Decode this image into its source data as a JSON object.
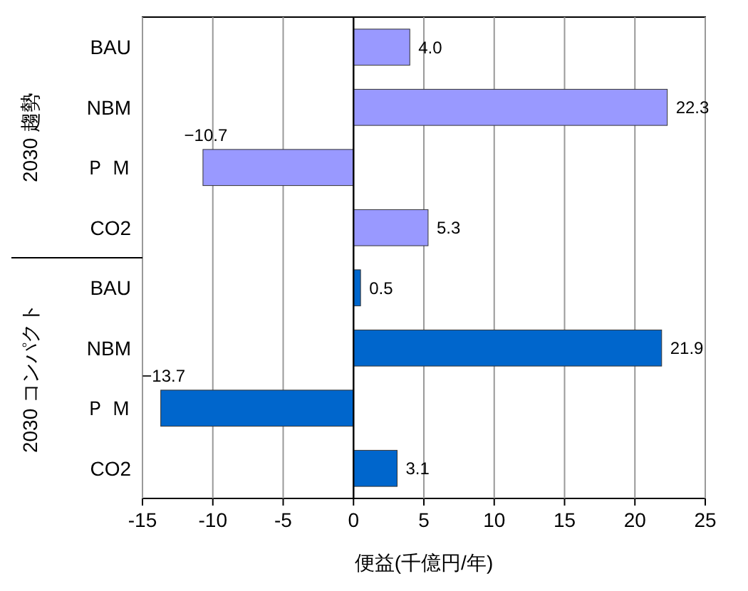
{
  "chart_data": {
    "type": "bar",
    "orientation": "horizontal",
    "xlabel": "便益(千億円/年)",
    "categories": [
      "BAU",
      "NBM",
      "Ｐ Ｍ",
      "CO2",
      "BAU",
      "NBM",
      "Ｐ Ｍ",
      "CO2"
    ],
    "values": [
      4.0,
      22.3,
      -10.7,
      5.3,
      0.5,
      21.9,
      -13.7,
      3.1
    ],
    "value_labels": [
      "4.0",
      "22.3",
      "−10.7",
      "5.3",
      "0.5",
      "21.9",
      "−13.7",
      "3.1"
    ],
    "colors": [
      "#9999ff",
      "#9999ff",
      "#9999ff",
      "#9999ff",
      "#0066cc",
      "#0066cc",
      "#0066cc",
      "#0066cc"
    ],
    "xlim": [
      -15,
      25
    ],
    "xticks": [
      -15,
      -10,
      -5,
      0,
      5,
      10,
      15,
      20,
      25
    ],
    "grid": "x",
    "annotations": [
      "2030 趨勢",
      "2030 コンパクト"
    ]
  }
}
